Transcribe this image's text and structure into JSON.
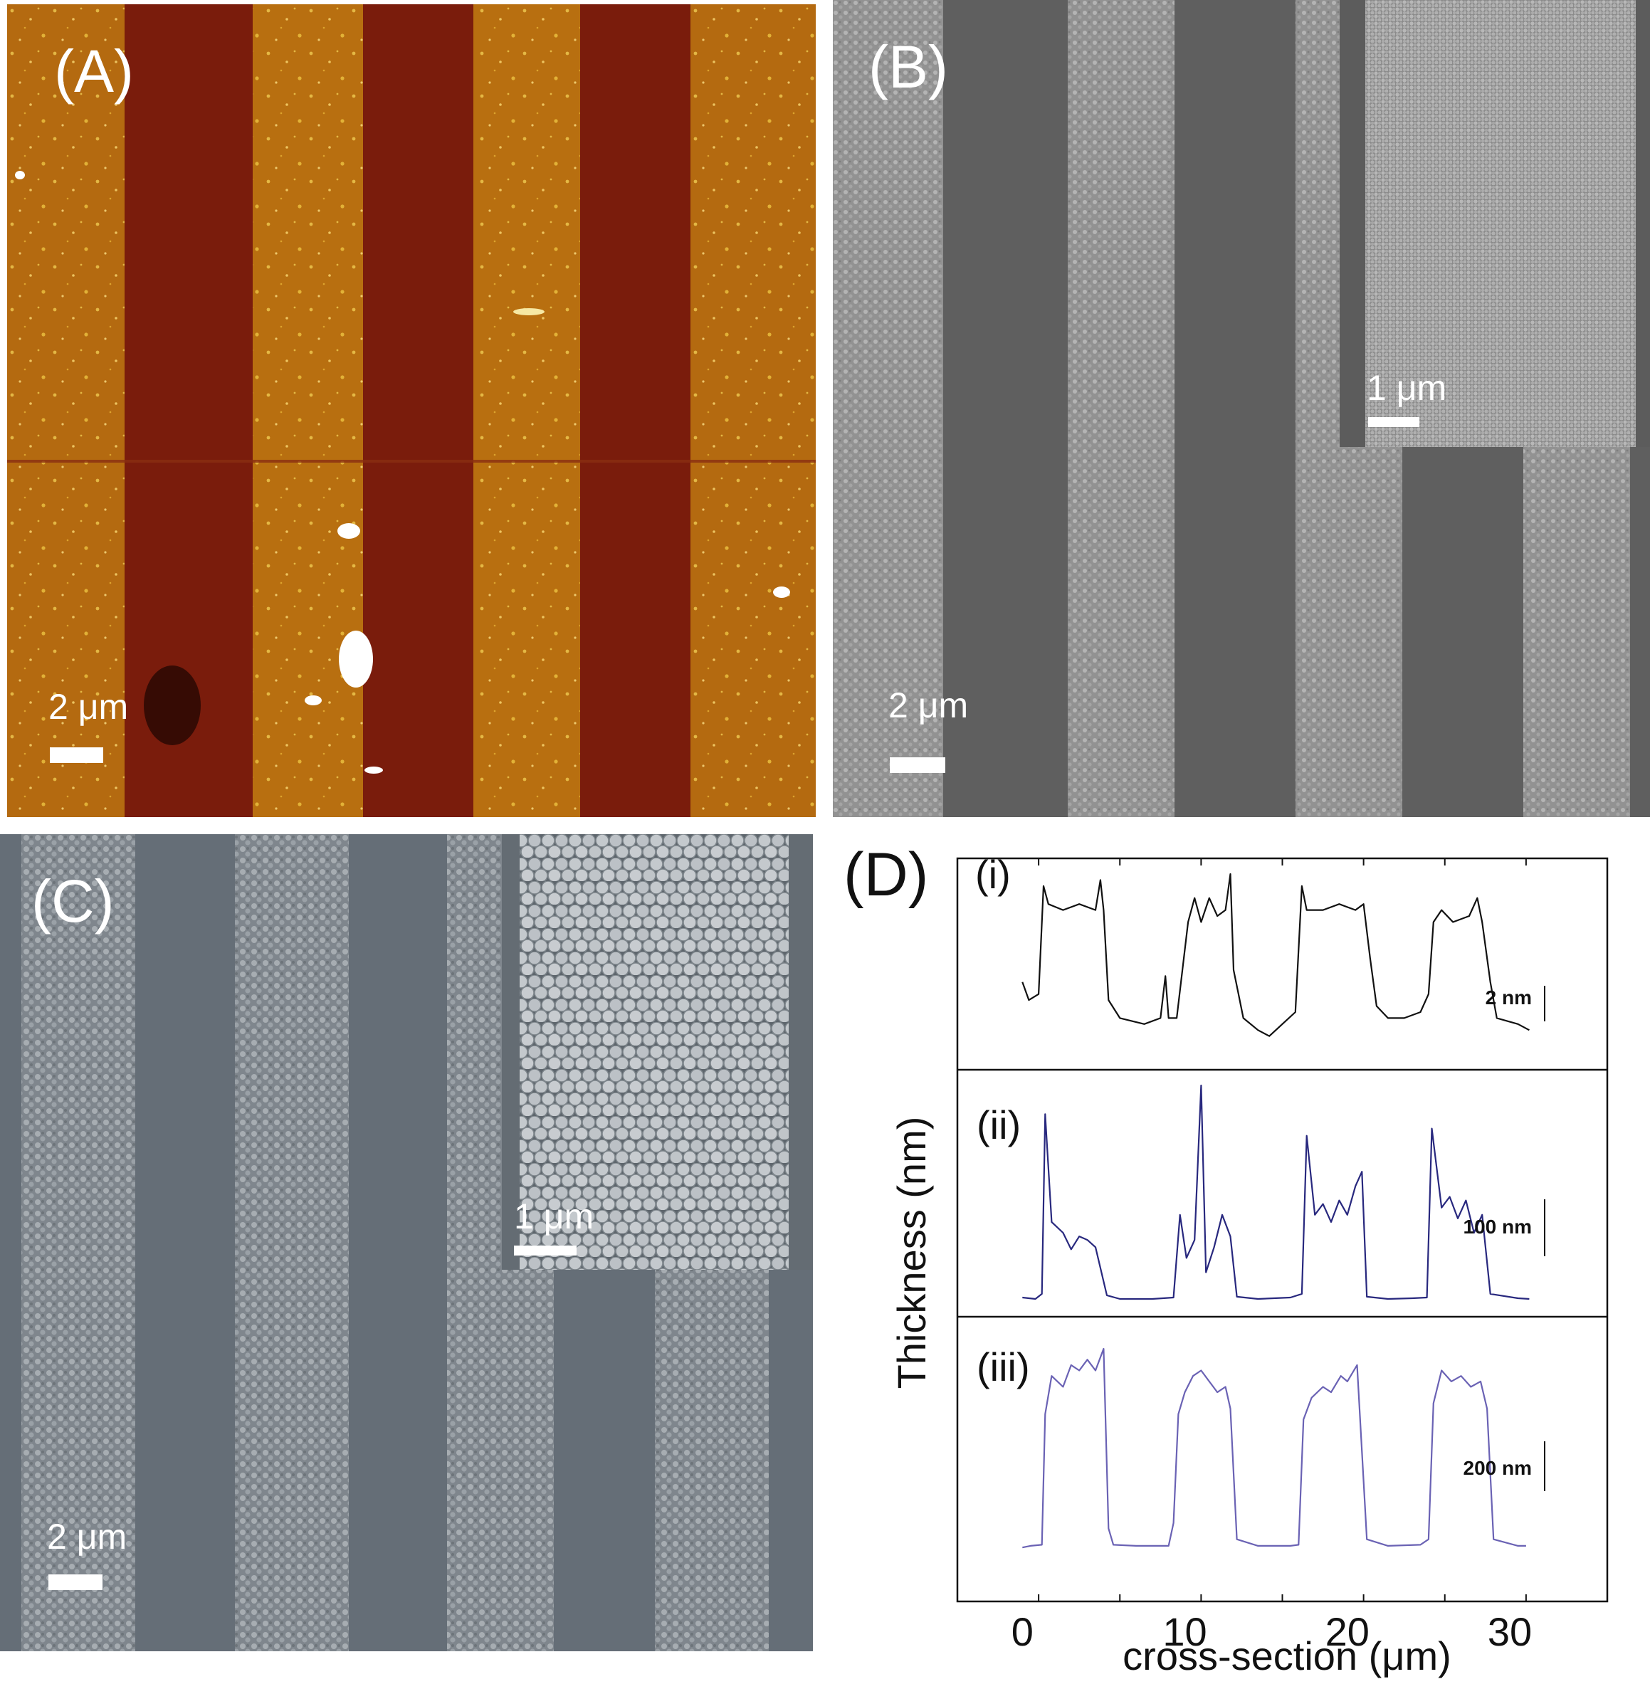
{
  "panels": {
    "a": {
      "label": "(A)",
      "scale_bar": "2 μm",
      "colors": {
        "dark_stripe": "#7a1c0c",
        "bright_stripe": "#b8700f",
        "particles": "#f3d056"
      }
    },
    "b": {
      "label": "(B)",
      "scale_bar": "2 μm",
      "inset_scale_bar": "1 μm",
      "colors": {
        "substrate": "#5e5e5e",
        "film": "#9a9a9a"
      }
    },
    "c": {
      "label": "(C)",
      "scale_bar": "2 μm",
      "inset_scale_bar": "1 μm",
      "colors": {
        "substrate": "#646d76",
        "film": "#8e959c",
        "spheres": "#c7ccd0"
      }
    },
    "d": {
      "label": "(D)",
      "subpanels": [
        "(i)",
        "(ii)",
        "(iii)"
      ],
      "scale_bars": [
        "2 nm",
        "100 nm",
        "200 nm"
      ]
    }
  },
  "chart_data": {
    "type": "line",
    "xlabel": "cross-section (μm)",
    "ylabel": "Thickness (nm)",
    "xlim": [
      -4,
      36
    ],
    "xticks": [
      0,
      10,
      20,
      30
    ],
    "grid": false,
    "series": [
      {
        "name": "(i)",
        "color": "#111111",
        "ymax": 3,
        "points": [
          [
            0,
            1.2
          ],
          [
            0.4,
            0.9
          ],
          [
            1.0,
            1.0
          ],
          [
            1.3,
            2.8
          ],
          [
            1.6,
            2.5
          ],
          [
            2.5,
            2.4
          ],
          [
            3.5,
            2.5
          ],
          [
            4.5,
            2.4
          ],
          [
            4.8,
            2.9
          ],
          [
            5.0,
            2.4
          ],
          [
            5.3,
            0.9
          ],
          [
            6.0,
            0.6
          ],
          [
            7.5,
            0.5
          ],
          [
            8.5,
            0.6
          ],
          [
            8.8,
            1.3
          ],
          [
            9.0,
            0.6
          ],
          [
            9.5,
            0.6
          ],
          [
            10.2,
            2.2
          ],
          [
            10.6,
            2.6
          ],
          [
            11.0,
            2.2
          ],
          [
            11.5,
            2.6
          ],
          [
            12.0,
            2.3
          ],
          [
            12.5,
            2.4
          ],
          [
            12.8,
            3.0
          ],
          [
            13.0,
            1.4
          ],
          [
            13.3,
            1.0
          ],
          [
            13.6,
            0.6
          ],
          [
            14.5,
            0.4
          ],
          [
            15.2,
            0.3
          ],
          [
            16.0,
            0.5
          ],
          [
            16.8,
            0.7
          ],
          [
            17.2,
            2.8
          ],
          [
            17.5,
            2.4
          ],
          [
            18.5,
            2.4
          ],
          [
            19.5,
            2.5
          ],
          [
            20.5,
            2.4
          ],
          [
            21.0,
            2.5
          ],
          [
            21.4,
            1.6
          ],
          [
            21.8,
            0.8
          ],
          [
            22.5,
            0.6
          ],
          [
            23.5,
            0.6
          ],
          [
            24.5,
            0.7
          ],
          [
            25.0,
            1.0
          ],
          [
            25.3,
            2.2
          ],
          [
            25.8,
            2.4
          ],
          [
            26.5,
            2.2
          ],
          [
            27.5,
            2.3
          ],
          [
            28.0,
            2.6
          ],
          [
            28.3,
            2.2
          ],
          [
            28.8,
            1.2
          ],
          [
            29.2,
            0.6
          ],
          [
            30.5,
            0.5
          ],
          [
            31.2,
            0.4
          ]
        ]
      },
      {
        "name": "(ii)",
        "color": "#28287e",
        "ymax": 300,
        "points": [
          [
            0,
            5
          ],
          [
            0.8,
            3
          ],
          [
            1.2,
            10
          ],
          [
            1.4,
            260
          ],
          [
            1.8,
            110
          ],
          [
            2.5,
            95
          ],
          [
            3.0,
            72
          ],
          [
            3.5,
            90
          ],
          [
            4.0,
            85
          ],
          [
            4.5,
            75
          ],
          [
            5.2,
            8
          ],
          [
            6.0,
            3
          ],
          [
            8.0,
            3
          ],
          [
            9.3,
            5
          ],
          [
            9.7,
            120
          ],
          [
            10.1,
            60
          ],
          [
            10.6,
            85
          ],
          [
            11.0,
            300
          ],
          [
            11.3,
            40
          ],
          [
            11.8,
            75
          ],
          [
            12.3,
            120
          ],
          [
            12.8,
            90
          ],
          [
            13.2,
            6
          ],
          [
            14.5,
            3
          ],
          [
            16.5,
            5
          ],
          [
            17.2,
            10
          ],
          [
            17.5,
            230
          ],
          [
            18.0,
            120
          ],
          [
            18.5,
            135
          ],
          [
            19.0,
            110
          ],
          [
            19.5,
            140
          ],
          [
            20.0,
            120
          ],
          [
            20.5,
            160
          ],
          [
            20.9,
            180
          ],
          [
            21.2,
            6
          ],
          [
            22.5,
            3
          ],
          [
            24.0,
            4
          ],
          [
            24.9,
            5
          ],
          [
            25.2,
            240
          ],
          [
            25.8,
            130
          ],
          [
            26.3,
            145
          ],
          [
            26.8,
            115
          ],
          [
            27.3,
            140
          ],
          [
            27.8,
            95
          ],
          [
            28.3,
            120
          ],
          [
            28.8,
            10
          ],
          [
            30.5,
            4
          ],
          [
            31.2,
            3
          ]
        ]
      },
      {
        "name": "(iii)",
        "color": "#6a62b4",
        "ymax": 400,
        "points": [
          [
            0,
            5
          ],
          [
            0.5,
            8
          ],
          [
            1.2,
            10
          ],
          [
            1.4,
            250
          ],
          [
            1.8,
            320
          ],
          [
            2.5,
            300
          ],
          [
            3.0,
            340
          ],
          [
            3.5,
            330
          ],
          [
            4.0,
            350
          ],
          [
            4.5,
            330
          ],
          [
            5.0,
            370
          ],
          [
            5.3,
            40
          ],
          [
            5.6,
            10
          ],
          [
            7.0,
            8
          ],
          [
            9.0,
            8
          ],
          [
            9.3,
            50
          ],
          [
            9.6,
            250
          ],
          [
            10.0,
            290
          ],
          [
            10.5,
            320
          ],
          [
            11.0,
            330
          ],
          [
            11.5,
            310
          ],
          [
            12.0,
            290
          ],
          [
            12.5,
            300
          ],
          [
            12.8,
            260
          ],
          [
            13.2,
            20
          ],
          [
            14.5,
            8
          ],
          [
            16.5,
            8
          ],
          [
            17.0,
            10
          ],
          [
            17.3,
            240
          ],
          [
            17.8,
            280
          ],
          [
            18.5,
            300
          ],
          [
            19.0,
            290
          ],
          [
            19.6,
            320
          ],
          [
            20.0,
            310
          ],
          [
            20.6,
            340
          ],
          [
            21.2,
            20
          ],
          [
            22.5,
            8
          ],
          [
            24.5,
            10
          ],
          [
            25.0,
            20
          ],
          [
            25.3,
            270
          ],
          [
            25.8,
            330
          ],
          [
            26.4,
            310
          ],
          [
            27.0,
            320
          ],
          [
            27.6,
            300
          ],
          [
            28.2,
            310
          ],
          [
            28.6,
            260
          ],
          [
            29.0,
            20
          ],
          [
            30.5,
            8
          ],
          [
            31.0,
            8
          ]
        ]
      }
    ]
  }
}
